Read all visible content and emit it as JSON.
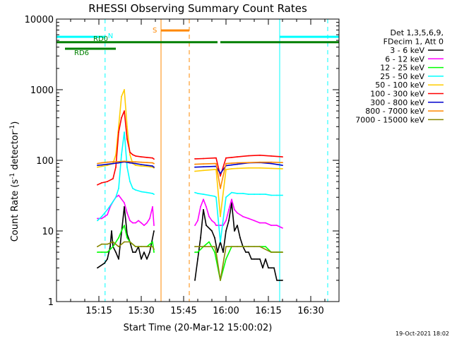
{
  "chart_data": {
    "type": "line",
    "title": "RHESSI Observing Summary Count Rates",
    "xlabel": "Start Time (20-Mar-12 15:00:02)",
    "ylabel_main": "Count Rate (s",
    "ylabel_sup1": "-1",
    "ylabel_mid": " detector",
    "ylabel_sup2": "-1",
    "ylabel_end": ")",
    "yscale": "log",
    "ylim": [
      1,
      10000
    ],
    "xlim_minutes": [
      0,
      100
    ],
    "x_ticks": [
      {
        "m": 15,
        "label": "15:15"
      },
      {
        "m": 30,
        "label": "15:30"
      },
      {
        "m": 45,
        "label": "15:45"
      },
      {
        "m": 60,
        "label": "16:00"
      },
      {
        "m": 75,
        "label": "16:15"
      },
      {
        "m": 90,
        "label": "16:30"
      }
    ],
    "y_ticks": [
      {
        "v": 1,
        "label": "1"
      },
      {
        "v": 10,
        "label": "10"
      },
      {
        "v": 100,
        "label": "100"
      },
      {
        "v": 1000,
        "label": "1000"
      },
      {
        "v": 10000,
        "label": "10000"
      }
    ],
    "legend": {
      "placement": "right",
      "header": [
        "Det 1,3,5,6,9,",
        "FDecim 1, Att 0"
      ]
    },
    "series": [
      {
        "name": "3 - 6 keV",
        "color": "#000000",
        "x": [
          14.5,
          17,
          18,
          19,
          19.5,
          20,
          21,
          22,
          24,
          25,
          26,
          27,
          28,
          29,
          30,
          31,
          32,
          33,
          34.5,
          49,
          50,
          51,
          52,
          53,
          55,
          56,
          57,
          58,
          59,
          60,
          61,
          62,
          63,
          64,
          65,
          66,
          67,
          68,
          69,
          70,
          71,
          72,
          73,
          74,
          75,
          76,
          77,
          78,
          79,
          80
        ],
        "y": [
          3,
          3.5,
          4,
          6,
          10,
          6,
          5,
          4,
          22,
          9,
          7,
          5,
          5,
          6,
          4,
          5,
          4,
          5,
          10,
          2,
          4,
          8,
          20,
          12,
          10,
          8,
          5,
          7,
          5,
          10,
          14,
          25,
          10,
          12,
          8,
          6,
          5,
          5,
          4,
          4,
          4,
          4,
          3,
          4,
          3,
          3,
          3,
          2,
          2,
          2
        ]
      },
      {
        "name": "6 - 12 keV",
        "color": "#ff00ff",
        "x": [
          14.5,
          16,
          18,
          19,
          20,
          21,
          22,
          24,
          25,
          26,
          27,
          28,
          29,
          30,
          31,
          32,
          33,
          34,
          34.5,
          49,
          50,
          51,
          52,
          53,
          54,
          55,
          56,
          56.5,
          59,
          60,
          61,
          62,
          63,
          64,
          66,
          68,
          70,
          72,
          74,
          76,
          78,
          80
        ],
        "y": [
          15,
          15,
          17,
          22,
          26,
          30,
          32,
          25,
          18,
          14,
          13,
          13,
          14,
          13,
          12,
          13,
          15,
          22,
          12,
          12,
          14,
          22,
          28,
          22,
          16,
          14,
          13,
          12,
          12,
          14,
          20,
          28,
          20,
          18,
          16,
          15,
          14,
          13,
          13,
          12,
          12,
          11
        ]
      },
      {
        "name": "12 - 25 keV",
        "color": "#00ff00",
        "x": [
          14.5,
          16,
          18,
          20,
          22,
          23,
          24,
          25,
          26,
          28,
          30,
          32,
          34,
          34.5,
          49,
          50,
          52,
          54,
          56,
          56.5,
          58,
          60,
          62,
          64,
          66,
          68,
          70,
          72,
          74,
          76,
          78,
          80
        ],
        "y": [
          5,
          5,
          5,
          6,
          8,
          10,
          12,
          8,
          7,
          6,
          6,
          6,
          7,
          5,
          5,
          5,
          6,
          7,
          5,
          4,
          2,
          4,
          6,
          6,
          6,
          6,
          6,
          6,
          6,
          5,
          5,
          5
        ]
      },
      {
        "name": "25 - 50 keV",
        "color": "#00ffff",
        "x": [
          14.5,
          16,
          18,
          20,
          21,
          22,
          23,
          24,
          25,
          26,
          27,
          28,
          30,
          32,
          34,
          34.5,
          49,
          50,
          52,
          54,
          56,
          56.5,
          58,
          60,
          62,
          64,
          66,
          68,
          70,
          72,
          74,
          76,
          78,
          80
        ],
        "y": [
          14,
          16,
          20,
          26,
          30,
          40,
          120,
          250,
          80,
          50,
          40,
          38,
          36,
          35,
          34,
          33,
          35,
          34,
          33,
          32,
          31,
          30,
          7,
          30,
          35,
          34,
          34,
          33,
          33,
          33,
          33,
          32,
          32,
          32
        ]
      },
      {
        "name": "50 - 100 keV",
        "color": "#ffcc00",
        "x": [
          14.5,
          16,
          18,
          20,
          21,
          22,
          23,
          24,
          25,
          26,
          27,
          28,
          30,
          32,
          34,
          34.5,
          49,
          52,
          56,
          56.5,
          58,
          60,
          62,
          64,
          68,
          72,
          76,
          80
        ],
        "y": [
          80,
          82,
          85,
          90,
          120,
          300,
          800,
          1000,
          300,
          120,
          90,
          85,
          83,
          82,
          80,
          78,
          70,
          72,
          74,
          74,
          16,
          74,
          76,
          77,
          78,
          78,
          77,
          76
        ]
      },
      {
        "name": "100 - 300 keV",
        "color": "#ff0000",
        "x": [
          14.5,
          16,
          18,
          20,
          21,
          22,
          23,
          24,
          25,
          26,
          27,
          28,
          30,
          32,
          34,
          34.5,
          49,
          52,
          56,
          56.5,
          58,
          60,
          62,
          64,
          68,
          72,
          76,
          80
        ],
        "y": [
          45,
          48,
          50,
          55,
          80,
          250,
          400,
          500,
          200,
          130,
          120,
          115,
          112,
          110,
          108,
          104,
          105,
          106,
          108,
          108,
          60,
          108,
          110,
          112,
          116,
          118,
          115,
          112
        ]
      },
      {
        "name": "300 - 800 keV",
        "color": "#0000cc",
        "x": [
          14.5,
          16,
          18,
          20,
          22,
          24,
          26,
          28,
          30,
          32,
          34,
          34.5,
          49,
          52,
          56,
          56.5,
          58,
          60,
          62,
          64,
          68,
          72,
          76,
          80
        ],
        "y": [
          85,
          86,
          88,
          90,
          92,
          95,
          92,
          90,
          87,
          85,
          83,
          80,
          80,
          81,
          82,
          82,
          65,
          84,
          86,
          88,
          92,
          93,
          90,
          85
        ]
      },
      {
        "name": "800 - 7000 keV",
        "color": "#ff8800",
        "x": [
          14.5,
          16,
          18,
          20,
          22,
          24,
          26,
          28,
          30,
          32,
          34,
          34.5,
          49,
          52,
          56,
          56.5,
          58,
          60,
          62,
          64,
          68,
          72,
          76,
          80
        ],
        "y": [
          90,
          92,
          94,
          95,
          96,
          97,
          96,
          95,
          94,
          93,
          92,
          90,
          88,
          89,
          90,
          90,
          40,
          90,
          91,
          92,
          93,
          94,
          94,
          93
        ]
      },
      {
        "name": "7000 - 15000 keV",
        "color": "#888800",
        "x": [
          14.5,
          16,
          18,
          20,
          22,
          24,
          26,
          28,
          30,
          32,
          34,
          34.5,
          49,
          52,
          56,
          56.5,
          58,
          60,
          62,
          64,
          68,
          72,
          76,
          80
        ],
        "y": [
          6,
          6.5,
          6.5,
          7,
          6,
          7,
          7,
          6,
          6,
          6,
          6,
          5.5,
          6,
          6,
          6,
          5,
          2,
          6,
          6,
          6,
          6,
          6,
          5,
          5
        ]
      }
    ],
    "flag_bars": [
      {
        "label": "N",
        "color": "#00ffff",
        "intervals": [
          [
            0,
            17.2
          ],
          [
            79,
            100
          ]
        ],
        "level": 5600
      },
      {
        "label": "S",
        "color": "#ff8800",
        "intervals": [
          [
            37,
            47
          ]
        ],
        "level": 6900
      },
      {
        "label": "RD0",
        "color": "#008000",
        "intervals": [
          [
            0,
            37
          ],
          [
            37,
            57
          ],
          [
            58,
            100
          ]
        ],
        "level": 4700
      },
      {
        "label": "RD6",
        "color": "#008000",
        "intervals": [
          [
            3,
            21
          ]
        ],
        "level": 3800
      }
    ],
    "vertical_lines": [
      {
        "m": 0,
        "color": "#00ffff",
        "style": "solid"
      },
      {
        "m": 17.2,
        "color": "#00ffff",
        "style": "dashed"
      },
      {
        "m": 79,
        "color": "#00ffff",
        "style": "solid"
      },
      {
        "m": 96,
        "color": "#00ffff",
        "style": "dashed"
      },
      {
        "m": 37,
        "color": "#ff8800",
        "style": "solid"
      },
      {
        "m": 47,
        "color": "#ff8800",
        "style": "dashed"
      }
    ],
    "data_gap_minutes": [
      [
        34.5,
        49
      ]
    ],
    "timestamp": "19-Oct-2021 18:02"
  }
}
